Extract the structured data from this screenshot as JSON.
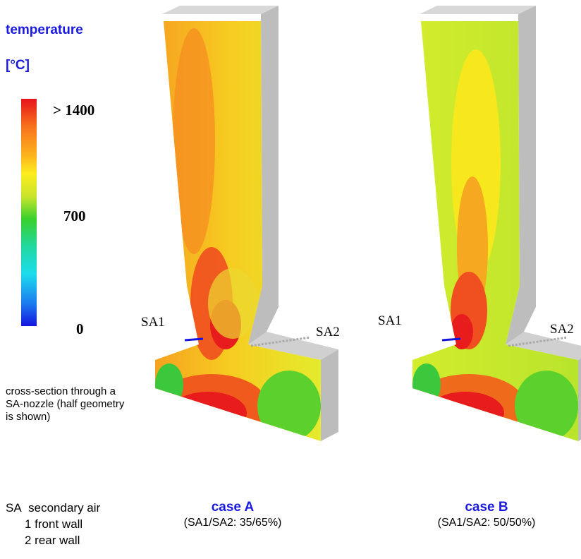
{
  "legend": {
    "title": "temperature",
    "unit": "[°C]",
    "scale_labels": [
      "> 1400",
      "700",
      "0"
    ]
  },
  "note": "cross-section through a SA-nozzle (half geometry is shown)",
  "abbreviations": {
    "term": "SA",
    "meaning": "secondary air",
    "items": [
      "1 front wall",
      "2 rear wall"
    ]
  },
  "panels": [
    {
      "title": "case A",
      "subtitle": "(SA1/SA2: 35/65%)",
      "labels": [
        "SA1",
        "SA2"
      ]
    },
    {
      "title": "case B",
      "subtitle": "(SA1/SA2: 50/50%)",
      "labels": [
        "SA1",
        "SA2"
      ]
    }
  ]
}
